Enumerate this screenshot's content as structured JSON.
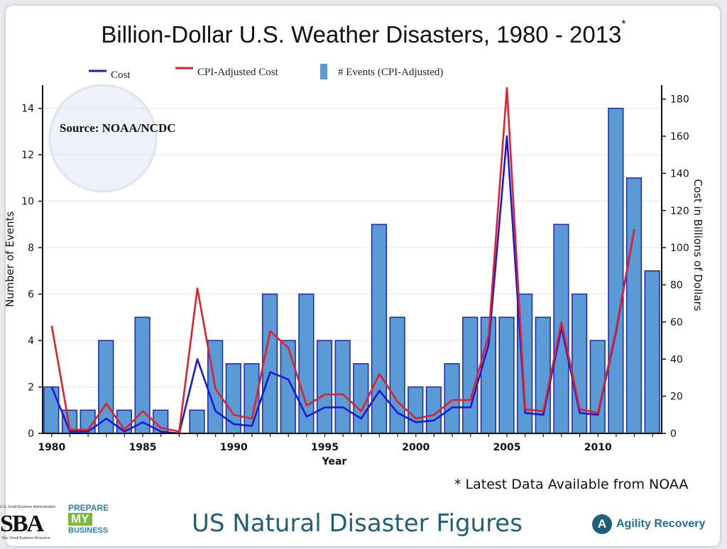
{
  "title": "Billion-Dollar U.S. Weather Disasters, 1980 - 2013",
  "title_asterisk": "*",
  "source": "Source:  NOAA/NCDC",
  "note": "* Latest Data Available from NOAA",
  "footer": {
    "title": "US Natural Disaster Figures",
    "sba_small": "U.S. Small Business Administration",
    "sba_big": "SBA",
    "sba_tag": "Your Small Business Resource",
    "prepare_1": "PREPARE",
    "prepare_2": "MY",
    "prepare_3": "BUSINESS",
    "agility_icon": "A",
    "agility": "Agility Recovery"
  },
  "colors": {
    "bar": "#5b9bd5",
    "bar_edge": "#1f2fb5",
    "cost": "#1a1ad6",
    "cpi": "#e0202a"
  },
  "chart_data": {
    "type": "bar",
    "title": "Billion-Dollar U.S. Weather Disasters, 1980 - 2013",
    "xlabel": "Year",
    "ylabel": "Number of Events",
    "y2label": "Cost in Billions of Dollars",
    "ylim": [
      0,
      15
    ],
    "y2lim": [
      0,
      187.5
    ],
    "yticks": [
      0,
      2,
      4,
      6,
      8,
      10,
      12,
      14
    ],
    "y2ticks": [
      0,
      20,
      40,
      60,
      80,
      100,
      120,
      140,
      160,
      180
    ],
    "xticks": [
      1980,
      1985,
      1990,
      1995,
      2000,
      2005,
      2010
    ],
    "legend": [
      "Cost",
      "CPI-Adjusted Cost",
      "# Events (CPI-Adjusted)"
    ],
    "categories": [
      1980,
      1981,
      1982,
      1983,
      1984,
      1985,
      1986,
      1987,
      1988,
      1989,
      1990,
      1991,
      1992,
      1993,
      1994,
      1995,
      1996,
      1997,
      1998,
      1999,
      2000,
      2001,
      2002,
      2003,
      2004,
      2005,
      2006,
      2007,
      2008,
      2009,
      2010,
      2011,
      2012,
      2013
    ],
    "series": [
      {
        "name": "# Events (CPI-Adjusted)",
        "axis": "left",
        "kind": "bar",
        "values": [
          2,
          1,
          1,
          4,
          1,
          5,
          1,
          0,
          1,
          4,
          3,
          3,
          6,
          4,
          6,
          4,
          4,
          3,
          9,
          5,
          2,
          2,
          3,
          5,
          5,
          5,
          6,
          5,
          9,
          6,
          4,
          14,
          11,
          7
        ]
      },
      {
        "name": "Cost",
        "axis": "right",
        "kind": "line",
        "values": [
          25,
          1,
          1,
          8,
          1,
          6,
          1,
          0,
          40,
          12,
          5,
          4,
          33,
          29,
          9,
          14,
          14,
          8,
          23,
          11,
          6,
          7,
          14,
          14,
          48,
          160,
          11,
          10,
          57,
          11,
          10,
          55,
          110,
          null
        ]
      },
      {
        "name": "CPI-Adjusted Cost",
        "axis": "right",
        "kind": "line",
        "values": [
          58,
          2,
          2,
          16,
          2,
          12,
          3,
          1,
          78,
          24,
          10,
          8,
          55,
          46,
          15,
          21,
          21,
          12,
          32,
          17,
          8,
          10,
          18,
          18,
          53,
          186,
          13,
          12,
          60,
          13,
          11,
          56,
          110,
          null
        ]
      }
    ]
  }
}
